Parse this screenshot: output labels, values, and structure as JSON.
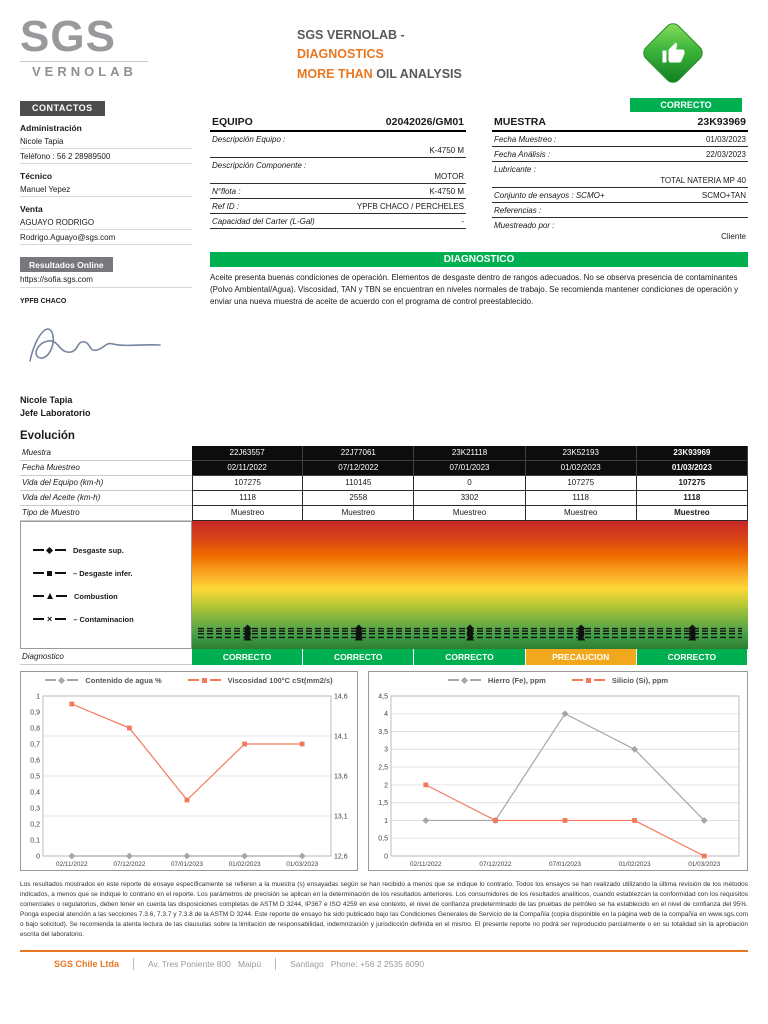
{
  "header": {
    "logo_text": "SGS",
    "logo_subtext": "VERNOLAB",
    "title_dark": "SGS VERNOLAB -",
    "title_accent": "DIAGNOSTICS",
    "subtitle_accent": "MORE THAN",
    "subtitle_dark": "OIL ANALYSIS",
    "overall_status": "CORRECTO",
    "accent_color": "#E87722",
    "ok_color": "#00B050",
    "warn_color": "#F2A81D"
  },
  "contacts": {
    "title": "CONTACTOS",
    "sections": [
      {
        "role": "Administración",
        "lines": [
          "Nicole Tapia",
          "Teléfono : 56 2 28989500"
        ]
      },
      {
        "role": "Técnico",
        "lines": [
          "Manuel Yepez"
        ]
      },
      {
        "role": "Venta",
        "lines": [
          "AGUAYO RODRIGO",
          "Rodrigo.Aguayo@sgs.com"
        ]
      }
    ],
    "online_title": "Resultados Online",
    "online_url": "https://sofia.sgs.com",
    "client": "YPFB CHACO",
    "signer_name": "Nicole Tapia",
    "signer_title": "Jefe Laboratorio"
  },
  "equipo": {
    "title": "EQUIPO",
    "id": "02042026/GM01",
    "rows": [
      {
        "label": "Descripción Equipo :",
        "value": "K-4750 M"
      },
      {
        "label": "Descripción Componente :",
        "value": "MOTOR"
      },
      {
        "label": "N°flota :",
        "value": "K-4750 M"
      },
      {
        "label": "Ref ID :",
        "value": "YPFB CHACO / PERCHELES"
      },
      {
        "label": "Capacidad del Carter (L-Gal)",
        "value": "-"
      }
    ]
  },
  "muestra": {
    "title": "MUESTRA",
    "id": "23K93969",
    "rows": [
      {
        "label": "Fecha Muestreo :",
        "value": "01/03/2023"
      },
      {
        "label": "Fecha Análisis :",
        "value": "22/03/2023"
      },
      {
        "label": "Lubricante :",
        "value": "TOTAL NATERIA MP 40"
      },
      {
        "label": "Conjunto de ensayos : SCMO+",
        "value": "SCMO+TAN"
      },
      {
        "label": "Referencias :",
        "value": ""
      },
      {
        "label": "Muestreado por :",
        "value": "Cliente"
      }
    ]
  },
  "diagnostico": {
    "title": "DIAGNOSTICO",
    "text": "Aceite presenta buenas condiciones de operación. Elementos de desgaste dentro de rangos adecuados. No se observa presencia de contaminantes (Polvo Ambiental/Agua). Viscosidad, TAN y TBN se encuentran en niveles normales de trabajo. Se recomienda mantener condiciones de operación y enviar una nueva muestra de aceite de acuerdo con el programa de control preestablecido."
  },
  "evolucion": {
    "title": "Evolución",
    "rows": [
      {
        "label": "Muestra",
        "values": [
          "22J63557",
          "22J77061",
          "23K21118",
          "23K52193",
          "23K93969"
        ]
      },
      {
        "label": "Fecha Muestreo",
        "values": [
          "02/11/2022",
          "07/12/2022",
          "07/01/2023",
          "01/02/2023",
          "01/03/2023"
        ]
      },
      {
        "label": "Vida del Equipo (km-h)",
        "values": [
          "107275",
          "110145",
          "0",
          "107275",
          "107275"
        ]
      },
      {
        "label": "Vida del Aceite (km-h)",
        "values": [
          "1118",
          "2558",
          "3302",
          "1118",
          "1118"
        ]
      },
      {
        "label": "Tipo de Muestro",
        "values": [
          "Muestreo",
          "Muestreo",
          "Muestreo",
          "Muestreo",
          "Muestreo"
        ]
      }
    ],
    "diagnostico_label": "Diagnostico",
    "diagnostico": [
      {
        "label": "CORRECTO",
        "status": "ok"
      },
      {
        "label": "CORRECTO",
        "status": "ok"
      },
      {
        "label": "CORRECTO",
        "status": "ok"
      },
      {
        "label": "PRECAUCION",
        "status": "warn"
      },
      {
        "label": "CORRECTO",
        "status": "ok"
      }
    ]
  },
  "chart_data": [
    {
      "id": "evolution-condition-band",
      "type": "line",
      "x": [
        "02/11/2022",
        "07/12/2022",
        "07/01/2023",
        "01/02/2023",
        "01/03/2023"
      ],
      "ylim": [
        0,
        1
      ],
      "note": "Normalized condition band (red=bad top, green=good bottom); all series flat near bottom",
      "series": [
        {
          "name": "Desgaste sup.",
          "marker": "diamond",
          "color": "#111111",
          "values": [
            0.16,
            0.16,
            0.16,
            0.16,
            0.16
          ]
        },
        {
          "name": "– Desgaste infer.",
          "marker": "square",
          "color": "#111111",
          "values": [
            0.12,
            0.12,
            0.12,
            0.12,
            0.12
          ]
        },
        {
          "name": "Combustion",
          "marker": "triangle",
          "color": "#111111",
          "values": [
            0.09,
            0.09,
            0.09,
            0.09,
            0.09
          ]
        },
        {
          "name": "– Contaminacion",
          "marker": "x",
          "color": "#111111",
          "values": [
            0.14,
            0.14,
            0.14,
            0.14,
            0.14
          ]
        }
      ]
    },
    {
      "id": "water-viscosity",
      "type": "line",
      "grid": "right",
      "x": [
        "02/11/2022",
        "07/12/2022",
        "07/01/2023",
        "01/02/2023",
        "01/03/2023"
      ],
      "left_axis": {
        "min": 0,
        "max": 1,
        "ticks": [
          "1",
          "0,9",
          "0,8",
          "0,7",
          "0,6",
          "0,5",
          "0,4",
          "0,3",
          "0,2",
          "0,1",
          "0"
        ]
      },
      "right_axis": {
        "min": 12.6,
        "max": 14.6,
        "ticks": [
          "14,6",
          "14,1",
          "13,6",
          "13,1",
          "12,6"
        ]
      },
      "series": [
        {
          "name": "Contenido de agua %",
          "axis": "left",
          "marker": "diamond",
          "color": "#A6A6A6",
          "values": [
            0,
            0,
            0,
            0,
            0
          ]
        },
        {
          "name": "Viscosidad 100°C cSt(mm2/s)",
          "axis": "right",
          "marker": "square",
          "color": "#F4795B",
          "values": [
            14.5,
            14.2,
            13.3,
            14.0,
            14.0
          ]
        }
      ]
    },
    {
      "id": "iron-silicon",
      "type": "line",
      "x": [
        "02/11/2022",
        "07/12/2022",
        "07/01/2023",
        "01/02/2023",
        "01/03/2023"
      ],
      "left_axis": {
        "min": 0,
        "max": 4.5,
        "ticks": [
          "4,5",
          "4",
          "3,5",
          "3",
          "2,5",
          "2",
          "1,5",
          "1",
          "0,5",
          "0"
        ]
      },
      "series": [
        {
          "name": "Hierro (Fe), ppm",
          "axis": "left",
          "marker": "diamond",
          "color": "#A6A6A6",
          "values": [
            1,
            1,
            4,
            3,
            1
          ]
        },
        {
          "name": "Silicio (Si), ppm",
          "axis": "left",
          "marker": "square",
          "color": "#F4795B",
          "values": [
            2,
            1,
            1,
            1,
            0
          ]
        }
      ]
    }
  ],
  "disclaimer": "Los resultados mostrados en este reporte de ensaye específicamente se refieren a la muestra (s) ensayadas según se han recibido a menos que se indique lo contrario. Todos los ensayos se han realizado utilizando la última revisión de los métodos indicados, a menos que se indique lo contrario en el reporte. Los parámetros de precisión se aplican en la determinación de los resultados anteriores. Los consumidores de los resultados analíticos, cuando establezcan la conformidad con los requisitos comerciales o regulatorios, deben tener en cuenta las disposiciones completas de ASTM D 3244, IP367 e ISO 4259 en ese contexto, el nivel de confianza predeterminado de las pruebas de petróleo se ha establecido en el nivel de confianza del 95%. Ponga especial atención a las secciones 7.3.6, 7.3.7 y 7.3.8 de la ASTM D 3244. Este reporte de ensayo ha sido publicado bajo las Condiciones Generales de Servicio de la Compañía (copia disponible en la página web de la compañía en www.sgs.com o bajo solicitud). Se recomienda la atenta lectura de las clausulas sobre la limitación de responsabilidad, indemnización y jurisdicción definida en el mismo. El presente reporte no podrá ser reproducido parcialmente o en su totalidad sin la aprobación escrita del laboratorio.",
  "footer": {
    "company": "SGS Chile Ltda",
    "address": "Av. Tres Poniente 800   Maipú",
    "city_phone": "Santiago   Phone: +56 2 2535 6090"
  }
}
